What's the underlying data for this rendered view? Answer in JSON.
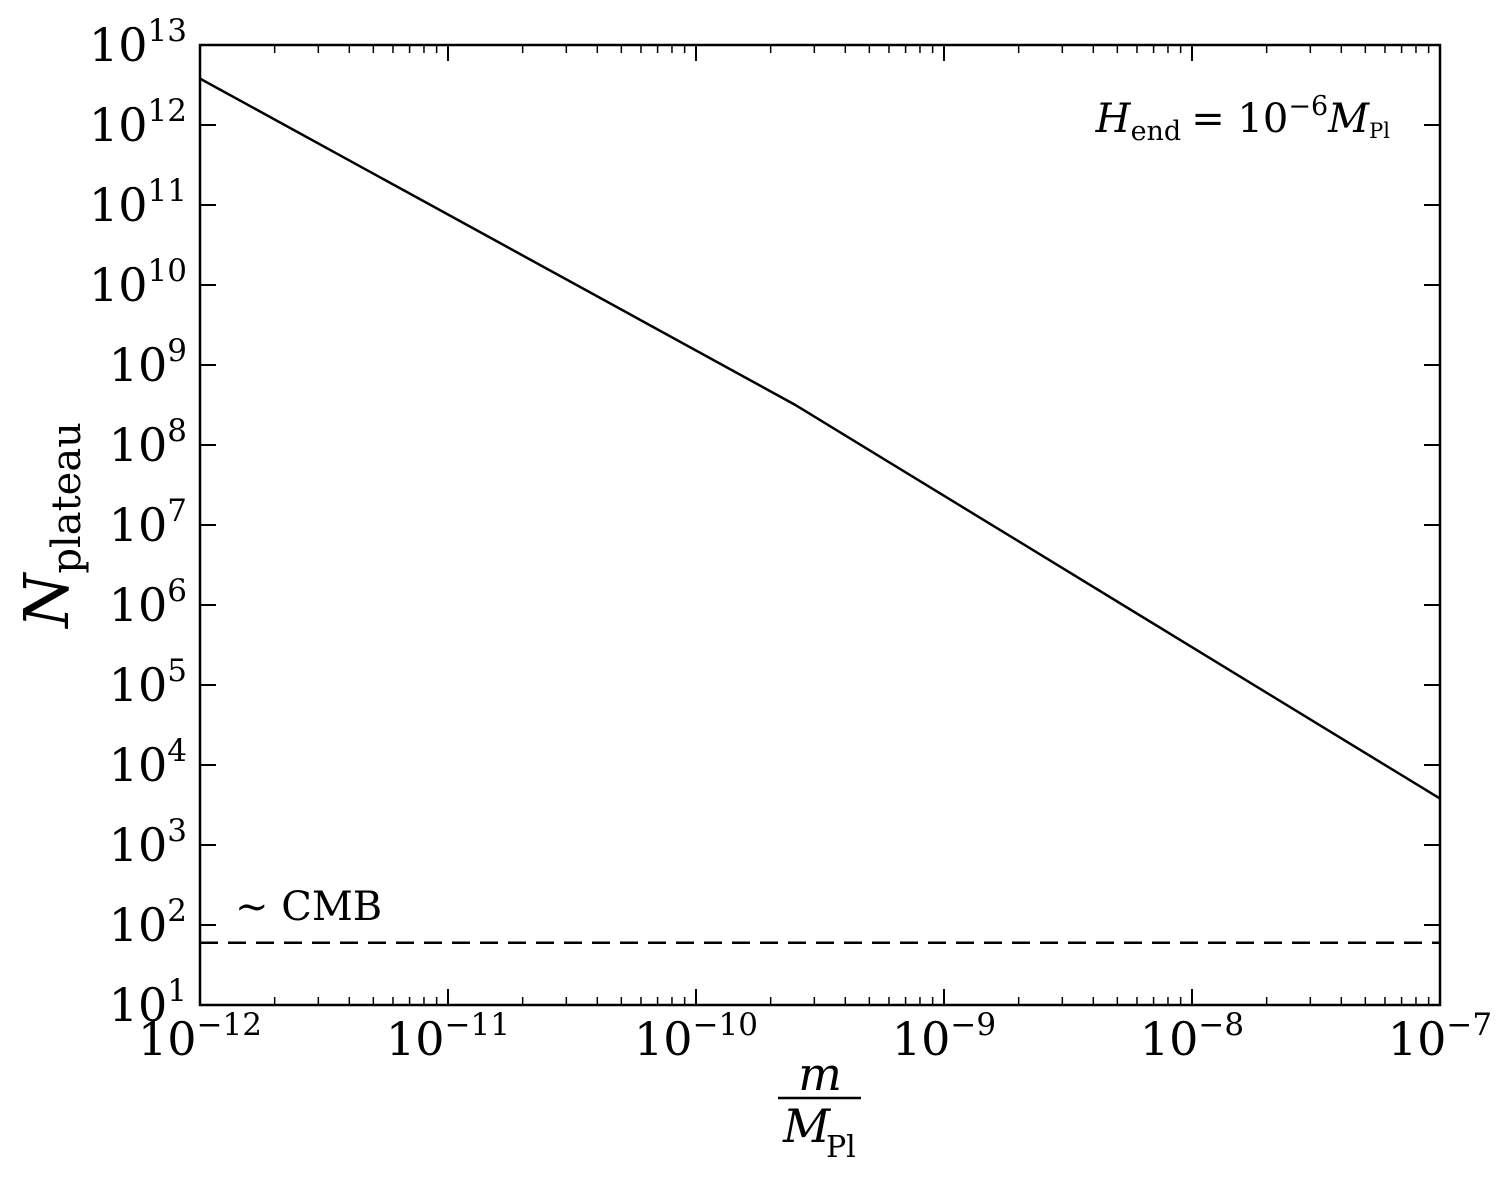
{
  "chart_data": {
    "type": "line",
    "x_scale": "log",
    "y_scale": "log",
    "xlim": [
      1e-12,
      1e-07
    ],
    "ylim": [
      10,
      10000000000000.0
    ],
    "grid": false,
    "xlabel": {
      "numerator": "m",
      "denominator": "M",
      "denominator_subscript": "Pl"
    },
    "ylabel": {
      "main": "N",
      "subscript": "plateau"
    },
    "x_ticks": [
      {
        "value": 1e-12,
        "base": "10",
        "exponent": "−12"
      },
      {
        "value": 1e-11,
        "base": "10",
        "exponent": "−11"
      },
      {
        "value": 1e-10,
        "base": "10",
        "exponent": "−10"
      },
      {
        "value": 1e-09,
        "base": "10",
        "exponent": "−9"
      },
      {
        "value": 1e-08,
        "base": "10",
        "exponent": "−8"
      },
      {
        "value": 1e-07,
        "base": "10",
        "exponent": "−7"
      }
    ],
    "y_ticks": [
      {
        "value": 10,
        "base": "10",
        "exponent": "1"
      },
      {
        "value": 100,
        "base": "10",
        "exponent": "2"
      },
      {
        "value": 1000,
        "base": "10",
        "exponent": "3"
      },
      {
        "value": 10000.0,
        "base": "10",
        "exponent": "4"
      },
      {
        "value": 100000.0,
        "base": "10",
        "exponent": "5"
      },
      {
        "value": 1000000.0,
        "base": "10",
        "exponent": "6"
      },
      {
        "value": 10000000.0,
        "base": "10",
        "exponent": "7"
      },
      {
        "value": 100000000.0,
        "base": "10",
        "exponent": "8"
      },
      {
        "value": 1000000000.0,
        "base": "10",
        "exponent": "9"
      },
      {
        "value": 10000000000.0,
        "base": "10",
        "exponent": "10"
      },
      {
        "value": 100000000000.0,
        "base": "10",
        "exponent": "11"
      },
      {
        "value": 1000000000000.0,
        "base": "10",
        "exponent": "12"
      },
      {
        "value": 10000000000000.0,
        "base": "10",
        "exponent": "13"
      }
    ],
    "series": [
      {
        "style": "solid",
        "color": "#000000",
        "x": [
          1e-12,
          2.5e-10,
          1e-07
        ],
        "y": [
          3800000000000.0,
          320000000.0,
          3800.0
        ]
      }
    ],
    "reference_lines": [
      {
        "style": "dashed",
        "color": "#000000",
        "y": 60,
        "label": "∼ CMB"
      }
    ],
    "annotation": {
      "H": "H",
      "H_sub": "end",
      "equals": "= 10",
      "exp": "−6",
      "M": "M",
      "M_sub": "Pl"
    }
  }
}
